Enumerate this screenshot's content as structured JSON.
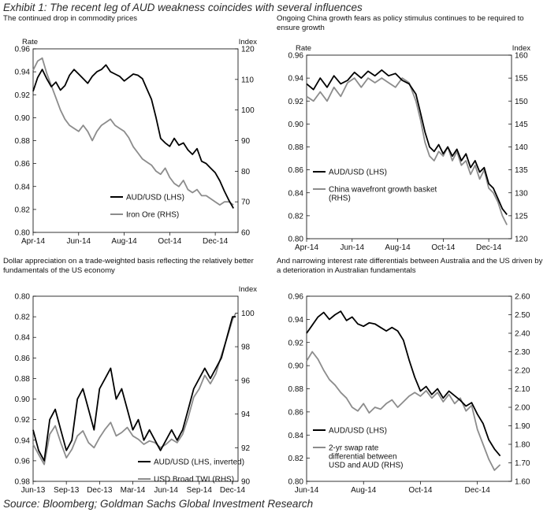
{
  "exhibit_title": "Exhibit 1: The recent leg of AUD weakness coincides with several influences",
  "source": "Source: Bloomberg; Goldman Sachs Global Investment Research",
  "colors": {
    "aud": "#000000",
    "other": "#8c8c8c"
  },
  "chart_data": [
    {
      "type": "line",
      "title": "The continued drop in commodity prices",
      "ylabel_left": "Rate",
      "ylabel_right": "Index",
      "x_ticks": [
        "Apr-14",
        "Jun-14",
        "Aug-14",
        "Oct-14",
        "Dec-14"
      ],
      "xlim": [
        0,
        9
      ],
      "x_tick_positions": [
        0,
        2,
        4,
        6,
        8
      ],
      "y_left": {
        "min": 0.8,
        "max": 0.96,
        "ticks": [
          0.96,
          0.94,
          0.92,
          0.9,
          0.88,
          0.86,
          0.84,
          0.82,
          0.8
        ],
        "inverted": false
      },
      "y_right": {
        "min": 60,
        "max": 120,
        "ticks": [
          120,
          110,
          100,
          90,
          80,
          70,
          60
        ]
      },
      "legend_position": "bottom-right",
      "series": [
        {
          "name": "AUD/USD (LHS)",
          "axis": "left",
          "color": "#000000",
          "x": [
            0,
            0.2,
            0.4,
            0.6,
            0.8,
            1.0,
            1.2,
            1.4,
            1.6,
            1.8,
            2.0,
            2.2,
            2.4,
            2.6,
            2.8,
            3.0,
            3.2,
            3.4,
            3.6,
            3.8,
            4.0,
            4.2,
            4.4,
            4.6,
            4.8,
            5.0,
            5.2,
            5.4,
            5.6,
            5.8,
            6.0,
            6.2,
            6.4,
            6.6,
            6.8,
            7.0,
            7.2,
            7.4,
            7.6,
            7.8,
            8.0,
            8.2,
            8.4,
            8.6,
            8.8
          ],
          "y": [
            0.923,
            0.935,
            0.942,
            0.934,
            0.927,
            0.931,
            0.924,
            0.928,
            0.937,
            0.942,
            0.938,
            0.934,
            0.93,
            0.936,
            0.94,
            0.942,
            0.946,
            0.94,
            0.938,
            0.936,
            0.932,
            0.935,
            0.938,
            0.937,
            0.934,
            0.925,
            0.916,
            0.9,
            0.882,
            0.878,
            0.875,
            0.882,
            0.876,
            0.878,
            0.872,
            0.868,
            0.873,
            0.862,
            0.86,
            0.856,
            0.852,
            0.845,
            0.836,
            0.828,
            0.821
          ]
        },
        {
          "name": "Iron Ore (RHS)",
          "axis": "right",
          "color": "#8c8c8c",
          "x": [
            0,
            0.2,
            0.4,
            0.6,
            0.8,
            1.0,
            1.2,
            1.4,
            1.6,
            1.8,
            2.0,
            2.2,
            2.4,
            2.6,
            2.8,
            3.0,
            3.2,
            3.4,
            3.6,
            3.8,
            4.0,
            4.2,
            4.4,
            4.6,
            4.8,
            5.0,
            5.2,
            5.4,
            5.6,
            5.8,
            6.0,
            6.2,
            6.4,
            6.6,
            6.8,
            7.0,
            7.2,
            7.4,
            7.6,
            7.8,
            8.0,
            8.2,
            8.4,
            8.6,
            8.8
          ],
          "y": [
            113,
            116,
            117,
            112,
            108,
            104,
            100,
            97,
            95,
            94,
            93,
            95,
            93,
            90,
            93,
            95,
            96,
            97,
            95,
            94,
            93,
            91,
            88,
            86,
            84,
            83,
            82,
            80,
            79,
            81,
            78,
            76,
            75,
            77,
            74,
            73,
            74,
            72,
            72,
            71,
            70,
            69,
            70,
            70,
            69
          ]
        }
      ]
    },
    {
      "type": "line",
      "title": "Ongoing China growth fears as policy stimulus continues to be required to ensure growth",
      "ylabel_left": "Rate",
      "ylabel_right": "Index",
      "x_ticks": [
        "Apr-14",
        "Jun-14",
        "Aug-14",
        "Oct-14",
        "Dec-14"
      ],
      "xlim": [
        0,
        9
      ],
      "x_tick_positions": [
        0,
        2,
        4,
        6,
        8
      ],
      "y_left": {
        "min": 0.8,
        "max": 0.96,
        "ticks": [
          0.96,
          0.94,
          0.92,
          0.9,
          0.88,
          0.86,
          0.84,
          0.82,
          0.8
        ],
        "inverted": false
      },
      "y_right": {
        "min": 120,
        "max": 160,
        "ticks": [
          160,
          155,
          150,
          145,
          140,
          135,
          130,
          125,
          120
        ]
      },
      "legend_position": "bottom-left",
      "series": [
        {
          "name": "AUD/USD (LHS)",
          "axis": "left",
          "color": "#000000",
          "x": [
            0,
            0.3,
            0.6,
            0.9,
            1.2,
            1.5,
            1.8,
            2.1,
            2.4,
            2.7,
            3.0,
            3.3,
            3.6,
            3.9,
            4.2,
            4.5,
            4.8,
            5.0,
            5.2,
            5.4,
            5.6,
            5.8,
            6.0,
            6.2,
            6.4,
            6.6,
            6.8,
            7.0,
            7.2,
            7.4,
            7.6,
            7.8,
            8.0,
            8.2,
            8.4,
            8.6,
            8.8
          ],
          "y": [
            0.935,
            0.93,
            0.94,
            0.932,
            0.942,
            0.935,
            0.938,
            0.945,
            0.94,
            0.946,
            0.942,
            0.947,
            0.942,
            0.944,
            0.938,
            0.935,
            0.926,
            0.91,
            0.893,
            0.88,
            0.876,
            0.882,
            0.874,
            0.88,
            0.872,
            0.878,
            0.868,
            0.874,
            0.862,
            0.868,
            0.858,
            0.862,
            0.848,
            0.844,
            0.835,
            0.826,
            0.821
          ]
        },
        {
          "name": "China wavefront growth basket (RHS)",
          "axis": "right",
          "color": "#8c8c8c",
          "x": [
            0,
            0.3,
            0.6,
            0.9,
            1.2,
            1.5,
            1.8,
            2.1,
            2.4,
            2.7,
            3.0,
            3.3,
            3.6,
            3.9,
            4.2,
            4.5,
            4.8,
            5.0,
            5.2,
            5.4,
            5.6,
            5.8,
            6.0,
            6.2,
            6.4,
            6.6,
            6.8,
            7.0,
            7.2,
            7.4,
            7.6,
            7.8,
            8.0,
            8.2,
            8.4,
            8.6,
            8.8
          ],
          "y": [
            151,
            150,
            152,
            150,
            153,
            151,
            154,
            155,
            153,
            155,
            154,
            155,
            154,
            153,
            155,
            154,
            150,
            146,
            141,
            138,
            137,
            139,
            138,
            140,
            137,
            139,
            136,
            137,
            134,
            136,
            133,
            135,
            131,
            130,
            128,
            125,
            123
          ]
        }
      ]
    },
    {
      "type": "line",
      "title": "Dollar appreciation on a trade-weighted basis reflecting the relatively better fundamentals of the US economy",
      "ylabel_left": "",
      "ylabel_right": "Index",
      "x_ticks": [
        "Jun-13",
        "Sep-13",
        "Dec-13",
        "Mar-14",
        "Jun-14",
        "Sep-14",
        "Dec-14"
      ],
      "xlim": [
        0,
        18.5
      ],
      "x_tick_positions": [
        0,
        3,
        6,
        9,
        12,
        15,
        18
      ],
      "y_left": {
        "min": 0.8,
        "max": 0.98,
        "ticks": [
          0.8,
          0.82,
          0.84,
          0.86,
          0.88,
          0.9,
          0.92,
          0.94,
          0.96,
          0.98
        ],
        "inverted": true
      },
      "y_right": {
        "min": 90,
        "max": 101,
        "ticks": [
          100,
          98,
          96,
          94,
          92,
          90
        ]
      },
      "legend_position": "bottom-right",
      "series": [
        {
          "name": "AUD/USD (LHS, inverted)",
          "axis": "left",
          "color": "#000000",
          "x": [
            0,
            0.5,
            1,
            1.5,
            2,
            2.5,
            3,
            3.5,
            4,
            4.5,
            5,
            5.5,
            6,
            6.5,
            7,
            7.5,
            8,
            8.5,
            9,
            9.5,
            10,
            10.5,
            11,
            11.5,
            12,
            12.5,
            13,
            13.5,
            14,
            14.5,
            15,
            15.5,
            16,
            16.5,
            17,
            17.5,
            18,
            18.3
          ],
          "y": [
            0.93,
            0.95,
            0.96,
            0.92,
            0.91,
            0.93,
            0.95,
            0.94,
            0.9,
            0.89,
            0.91,
            0.93,
            0.89,
            0.88,
            0.87,
            0.9,
            0.89,
            0.91,
            0.93,
            0.92,
            0.94,
            0.93,
            0.94,
            0.95,
            0.94,
            0.93,
            0.94,
            0.93,
            0.91,
            0.89,
            0.88,
            0.87,
            0.88,
            0.87,
            0.86,
            0.84,
            0.82,
            0.82
          ]
        },
        {
          "name": "USD Broad TWI (RHS)",
          "axis": "right",
          "color": "#8c8c8c",
          "x": [
            0,
            0.5,
            1,
            1.5,
            2,
            2.5,
            3,
            3.5,
            4,
            4.5,
            5,
            5.5,
            6,
            6.5,
            7,
            7.5,
            8,
            8.5,
            9,
            9.5,
            10,
            10.5,
            11,
            11.5,
            12,
            12.5,
            13,
            13.5,
            14,
            14.5,
            15,
            15.5,
            16,
            16.5,
            17,
            17.5,
            18,
            18.3
          ],
          "y": [
            92.2,
            91.6,
            91.0,
            92.8,
            93.3,
            92.3,
            91.4,
            91.9,
            92.7,
            93.0,
            92.3,
            92.0,
            92.6,
            93.1,
            93.5,
            92.7,
            92.9,
            93.2,
            92.7,
            92.5,
            92.2,
            92.4,
            92.3,
            92.0,
            92.2,
            92.5,
            92.3,
            92.8,
            93.8,
            95.0,
            95.5,
            96.3,
            95.8,
            96.4,
            97.5,
            98.5,
            99.6,
            100.0
          ]
        }
      ]
    },
    {
      "type": "line",
      "title": "And narrowing interest rate differentials between Australia and the US driven by a deterioration in Australian fundamentals",
      "ylabel_left": "",
      "ylabel_right": "",
      "x_ticks": [
        "Jun-14",
        "Aug-14",
        "Oct-14",
        "Dec-14"
      ],
      "xlim": [
        0,
        7.2
      ],
      "x_tick_positions": [
        0,
        2,
        4,
        6
      ],
      "y_left": {
        "min": 0.8,
        "max": 0.96,
        "ticks": [
          0.96,
          0.94,
          0.92,
          0.9,
          0.88,
          0.86,
          0.84,
          0.82,
          0.8
        ],
        "inverted": false
      },
      "y_right": {
        "min": 1.6,
        "max": 2.6,
        "ticks": [
          2.6,
          2.5,
          2.4,
          2.3,
          2.2,
          2.1,
          2.0,
          1.9,
          1.8,
          1.7,
          1.6
        ]
      },
      "legend_position": "bottom-left",
      "series": [
        {
          "name": "AUD/USD (LHS)",
          "axis": "left",
          "color": "#000000",
          "x": [
            0,
            0.2,
            0.4,
            0.6,
            0.8,
            1.0,
            1.2,
            1.4,
            1.6,
            1.8,
            2.0,
            2.2,
            2.4,
            2.6,
            2.8,
            3.0,
            3.2,
            3.4,
            3.6,
            3.8,
            4.0,
            4.2,
            4.4,
            4.6,
            4.8,
            5.0,
            5.2,
            5.4,
            5.6,
            5.8,
            6.0,
            6.2,
            6.4,
            6.6,
            6.8
          ],
          "y": [
            0.928,
            0.935,
            0.942,
            0.946,
            0.94,
            0.944,
            0.947,
            0.939,
            0.942,
            0.936,
            0.934,
            0.937,
            0.936,
            0.933,
            0.93,
            0.933,
            0.93,
            0.922,
            0.905,
            0.89,
            0.878,
            0.882,
            0.875,
            0.88,
            0.872,
            0.878,
            0.874,
            0.87,
            0.865,
            0.868,
            0.858,
            0.85,
            0.836,
            0.828,
            0.822
          ]
        },
        {
          "name": "2-yr swap rate differential between USD and AUD (RHS)",
          "axis": "right",
          "color": "#8c8c8c",
          "x": [
            0,
            0.2,
            0.4,
            0.6,
            0.8,
            1.0,
            1.2,
            1.4,
            1.6,
            1.8,
            2.0,
            2.2,
            2.4,
            2.6,
            2.8,
            3.0,
            3.2,
            3.4,
            3.6,
            3.8,
            4.0,
            4.2,
            4.4,
            4.6,
            4.8,
            5.0,
            5.2,
            5.4,
            5.6,
            5.8,
            6.0,
            6.2,
            6.4,
            6.6,
            6.8
          ],
          "y": [
            2.25,
            2.3,
            2.26,
            2.2,
            2.15,
            2.12,
            2.08,
            2.05,
            2.0,
            1.98,
            2.02,
            1.97,
            2.0,
            1.99,
            2.02,
            2.04,
            2.0,
            2.03,
            2.06,
            2.08,
            2.06,
            2.09,
            2.05,
            2.08,
            2.03,
            2.07,
            2.02,
            2.05,
            1.98,
            2.01,
            1.88,
            1.8,
            1.72,
            1.66,
            1.69
          ]
        }
      ]
    }
  ]
}
